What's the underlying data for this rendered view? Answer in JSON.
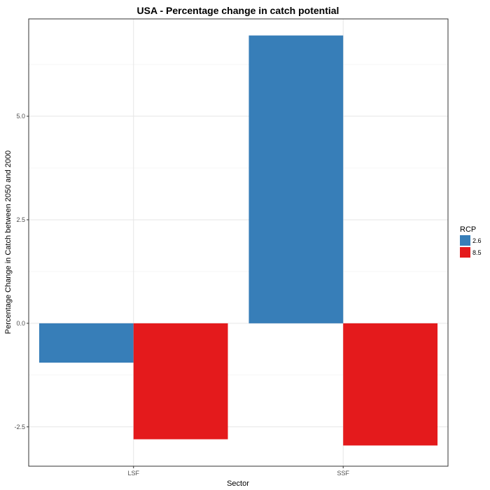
{
  "chart_data": {
    "type": "bar",
    "title": "USA - Percentage change in catch potential",
    "xlabel": "Sector",
    "ylabel": "Percentage Change in Catch between 2050 and 2000",
    "categories": [
      "LSF",
      "SSF"
    ],
    "series": [
      {
        "name": "2.6",
        "color": "#377EB8",
        "values": [
          -0.95,
          6.95
        ]
      },
      {
        "name": "8.5",
        "color": "#E41A1C",
        "values": [
          -2.8,
          -2.95
        ]
      }
    ],
    "ylim": [
      -3.45,
      7.35
    ],
    "yticks": [
      -2.5,
      0.0,
      2.5,
      5.0
    ],
    "ytick_labels": [
      "-2.5",
      "0.0",
      "2.5",
      "5.0"
    ],
    "grid": true,
    "legend": {
      "title": "RCP",
      "placement": "right"
    }
  }
}
